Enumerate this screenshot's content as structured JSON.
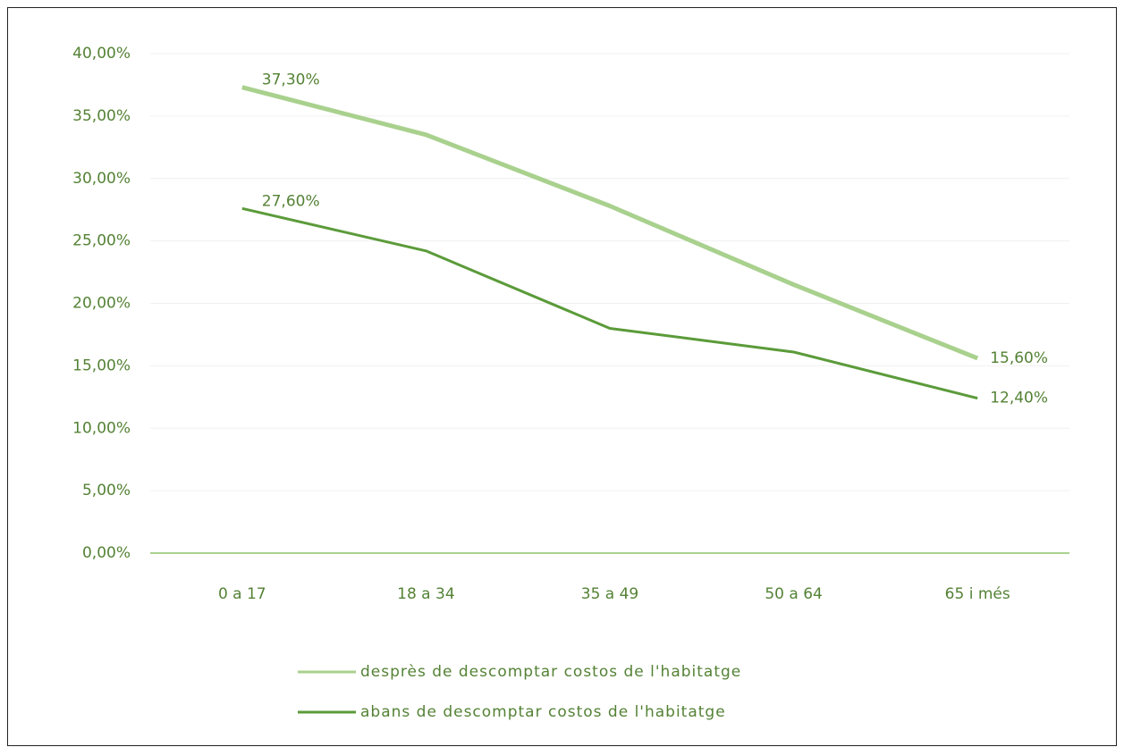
{
  "chart_data": {
    "type": "line",
    "categories": [
      "0 a 17",
      "18 a 34",
      "35 a 49",
      "50 a 64",
      "65 i més"
    ],
    "series": [
      {
        "name": "desprès de descomptar costos de l'habitatge",
        "color": "#a9d18e",
        "values": [
          37.3,
          33.5,
          27.8,
          21.5,
          15.6
        ],
        "value_labels": [
          "37,30%",
          null,
          null,
          null,
          "15,60%"
        ]
      },
      {
        "name": "abans de descomptar costos de l'habitatge",
        "color": "#5b9b3a",
        "values": [
          27.6,
          24.2,
          18.0,
          16.1,
          12.4
        ],
        "value_labels": [
          "27,60%",
          null,
          null,
          null,
          "12,40%"
        ]
      }
    ],
    "ylim": [
      0,
      40
    ],
    "yticks": [
      {
        "value": 0,
        "label": "0,00%"
      },
      {
        "value": 5,
        "label": "5,00%"
      },
      {
        "value": 10,
        "label": "10,00%"
      },
      {
        "value": 15,
        "label": "15,00%"
      },
      {
        "value": 20,
        "label": "20,00%"
      },
      {
        "value": 25,
        "label": "25,00%"
      },
      {
        "value": 30,
        "label": "30,00%"
      },
      {
        "value": 35,
        "label": "35,00%"
      },
      {
        "value": 40,
        "label": "40,00%"
      }
    ],
    "grid": true,
    "legend": "bottom"
  }
}
